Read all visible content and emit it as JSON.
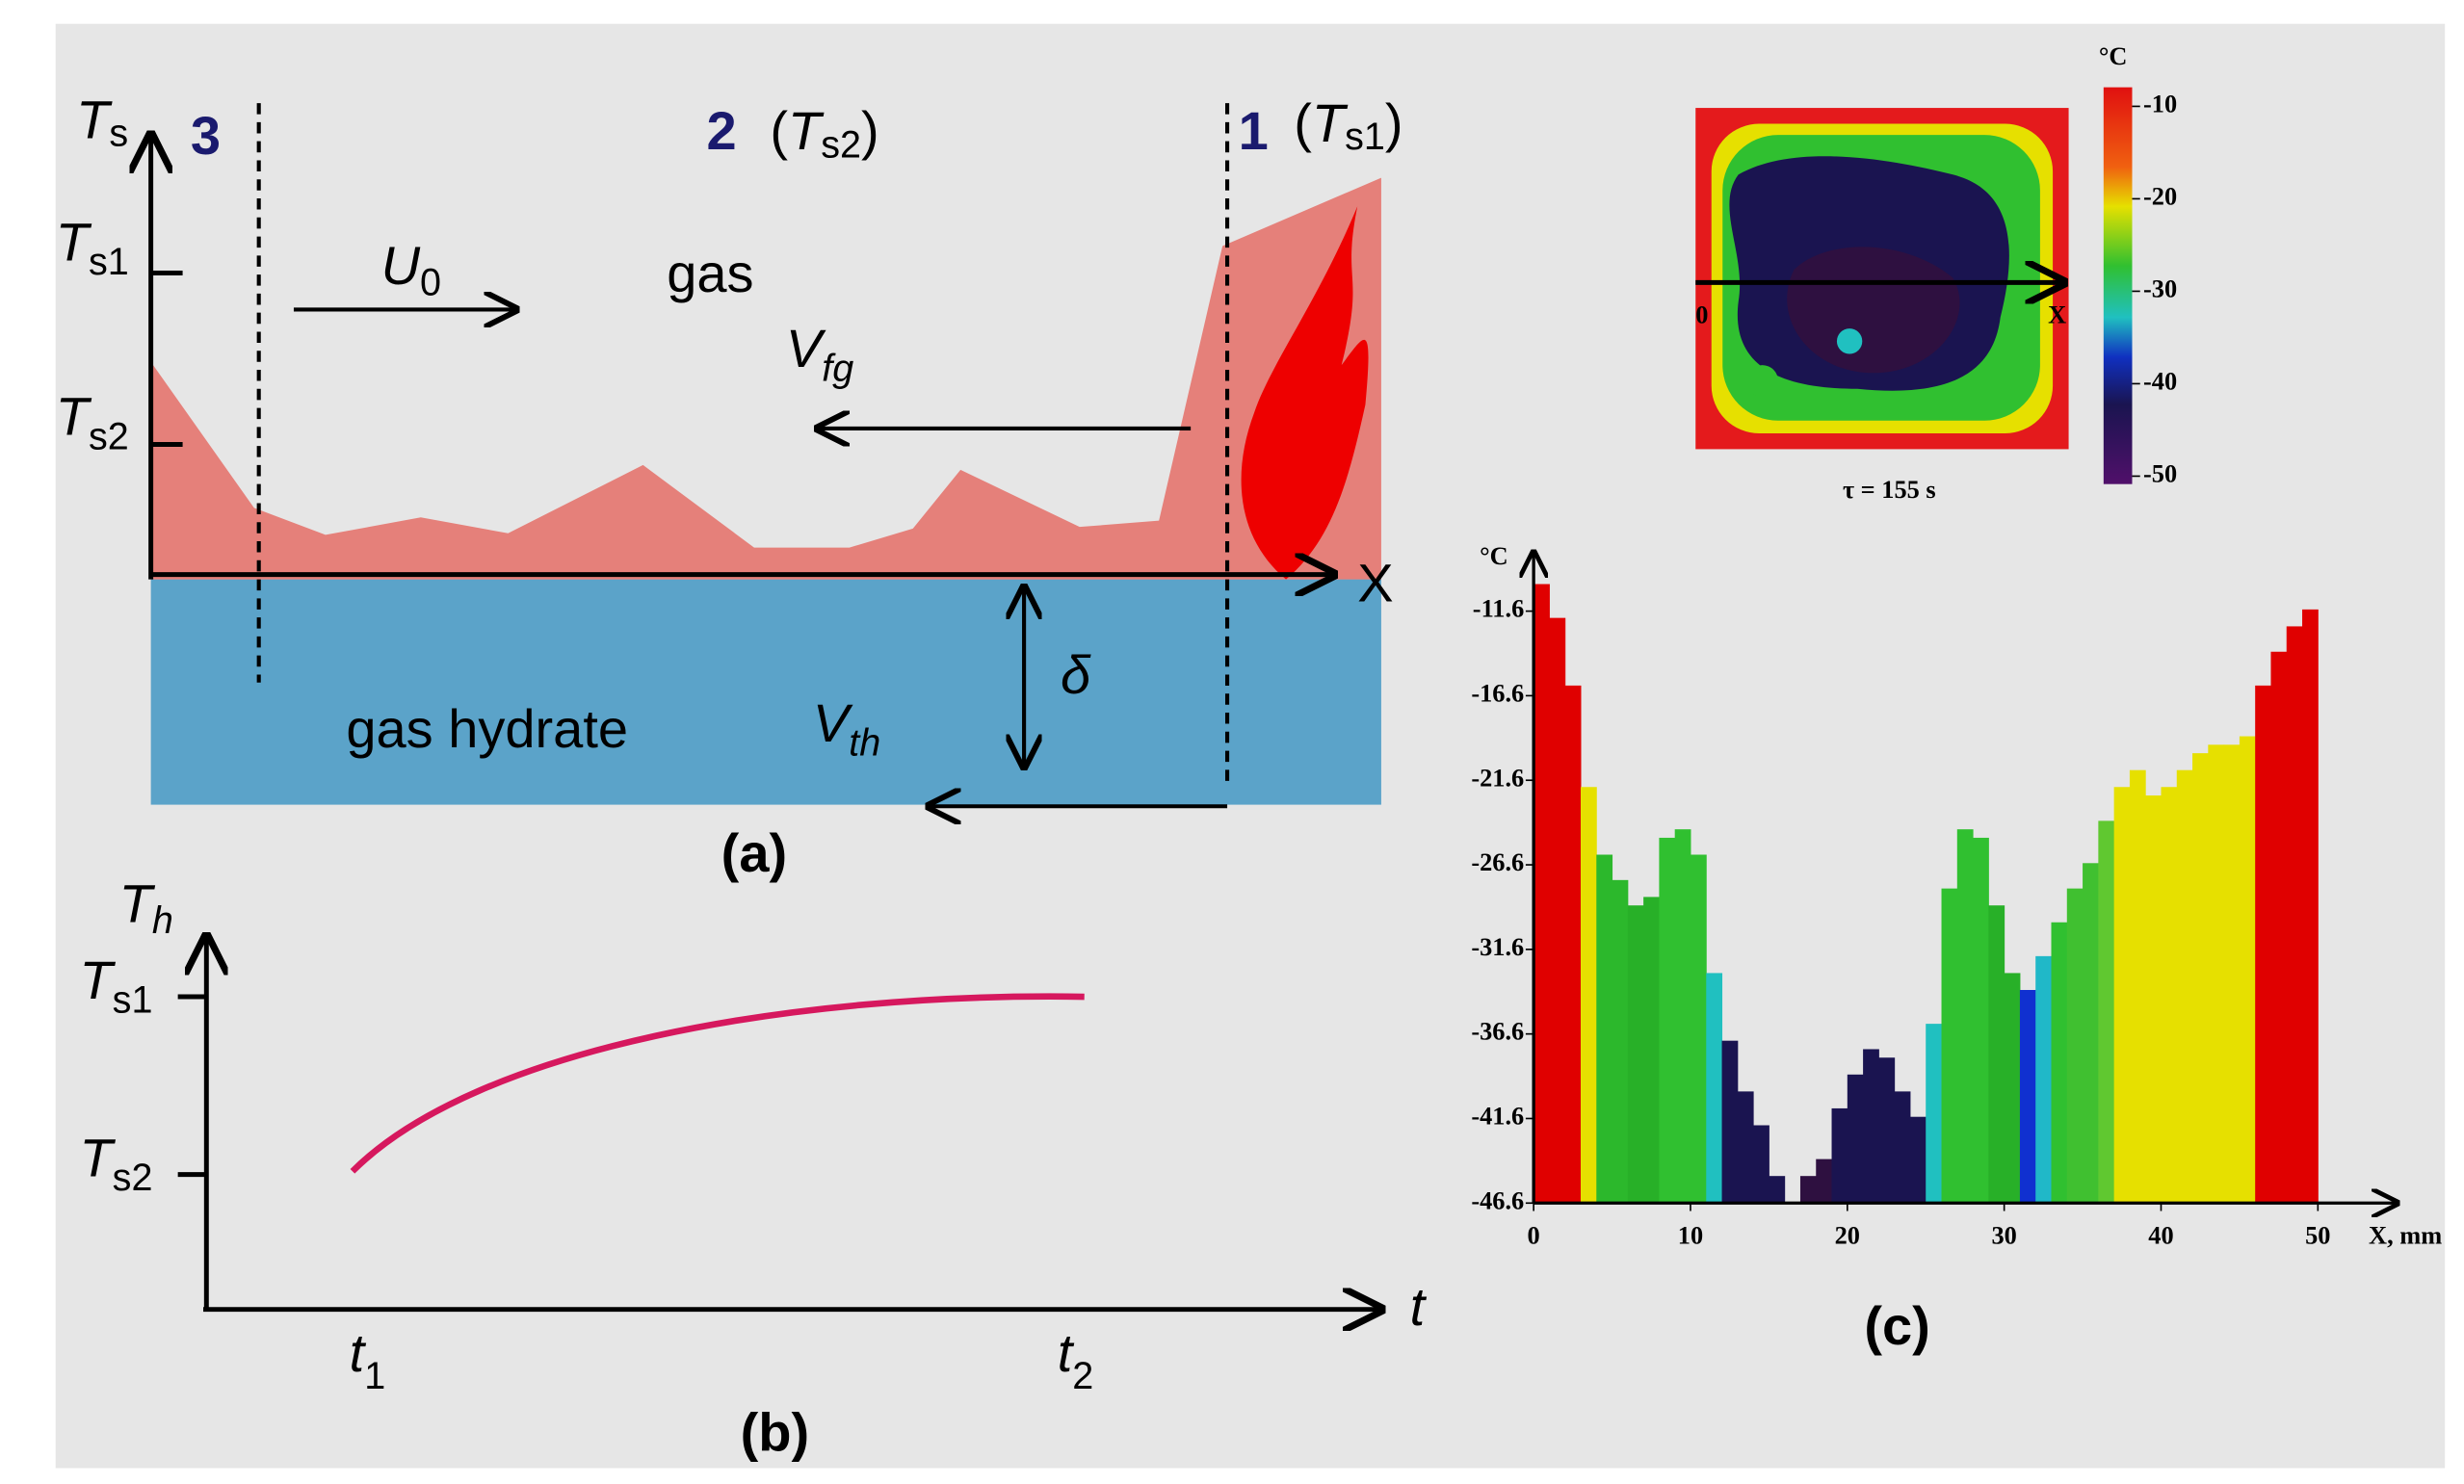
{
  "panel_a": {
    "label": "(a)",
    "ts_axis": {
      "main": "T",
      "sub": "s"
    },
    "zone3": "3",
    "zone2": "2",
    "zone2_temp": {
      "open": "(",
      "main": "T",
      "sub": "s2",
      "close": ")"
    },
    "zone1": "1",
    "zone1_temp": {
      "open": "(",
      "main": "T",
      "sub": "s1",
      "close": ")"
    },
    "ts1_tick": {
      "main": "T",
      "sub": "s1"
    },
    "ts2_tick": {
      "main": "T",
      "sub": "s2"
    },
    "u0": {
      "main": "U",
      "sub": "0"
    },
    "gas": "gas",
    "vfg": {
      "main": "V",
      "sub": "fg"
    },
    "delta": "δ",
    "hydrate": "gas hydrate",
    "vth": {
      "main": "V",
      "sub": "th"
    },
    "x_axis": "X"
  },
  "panel_b": {
    "label": "(b)",
    "th_axis": {
      "main": "T",
      "sub": "h"
    },
    "ts1_tick": {
      "main": "T",
      "sub": "s1"
    },
    "ts2_tick": {
      "main": "T",
      "sub": "s2"
    },
    "t_axis": "t",
    "t1": {
      "main": "t",
      "sub": "1"
    },
    "t2": {
      "main": "t",
      "sub": "2"
    }
  },
  "thermogram": {
    "unit": "°C",
    "colorbar_ticks": [
      -10,
      -20,
      -30,
      -40,
      -50
    ],
    "x_start": "0",
    "x_end": "X",
    "time": "τ = 155 s"
  },
  "chart_data": {
    "type": "bar",
    "label": "(c)",
    "xlabel": "X, mm",
    "ylabel": "°C",
    "x": [
      0,
      1,
      2,
      3,
      4,
      5,
      6,
      7,
      8,
      9,
      10,
      11,
      12,
      13,
      14,
      15,
      16,
      17,
      18,
      19,
      20,
      21,
      22,
      23,
      24,
      25,
      26,
      27,
      28,
      29,
      30,
      31,
      32,
      33,
      34,
      35,
      36,
      37,
      38,
      39,
      40,
      41,
      42,
      43,
      44,
      45,
      46,
      47,
      48,
      49
    ],
    "values": [
      -10,
      -12,
      -16,
      -22,
      -26,
      -27.5,
      -29,
      -28.5,
      -25,
      -24.5,
      -26,
      -33,
      -37,
      -40,
      -42,
      -45,
      -46.6,
      -45,
      -44,
      -41,
      -39,
      -37.5,
      -38,
      -40,
      -41.5,
      -36,
      -28,
      -24.5,
      -25,
      -29,
      -33,
      -34,
      -32,
      -30,
      -28,
      -26.5,
      -24,
      -22,
      -21,
      -22.5,
      -22,
      -21,
      -20,
      -19.5,
      -19.5,
      -19,
      -16,
      -14,
      -12.5,
      -11.5
    ],
    "colors": [
      "#e00000",
      "#e00000",
      "#e00000",
      "#e6e000",
      "#2cb82c",
      "#2cb82c",
      "#28b028",
      "#28b028",
      "#30c030",
      "#30c030",
      "#30c030",
      "#20c0c0",
      "#1a1450",
      "#1a1450",
      "#1a1450",
      "#1a1450",
      "#2e1040",
      "#2e1040",
      "#2e1040",
      "#1a1450",
      "#1a1450",
      "#1a1450",
      "#1a1450",
      "#1a1450",
      "#1a1450",
      "#20c0c0",
      "#30c030",
      "#30c030",
      "#30c030",
      "#28b028",
      "#28b028",
      "#1030d0",
      "#20b8c8",
      "#30c030",
      "#40c030",
      "#40c030",
      "#60c830",
      "#e6e000",
      "#e6e000",
      "#e6e000",
      "#e6e000",
      "#e6e000",
      "#e6e000",
      "#e6e000",
      "#e6e000",
      "#e6e000",
      "#e00000",
      "#e00000",
      "#e00000",
      "#e00000"
    ],
    "bin_width": 1,
    "xlim": [
      0,
      50
    ],
    "ylim": [
      -46.6,
      -10
    ],
    "xticks": [
      0,
      10,
      20,
      30,
      40,
      50
    ],
    "yticks": [
      -11.6,
      -16.6,
      -21.6,
      -26.6,
      -31.6,
      -36.6,
      -41.6,
      -46.6
    ]
  }
}
